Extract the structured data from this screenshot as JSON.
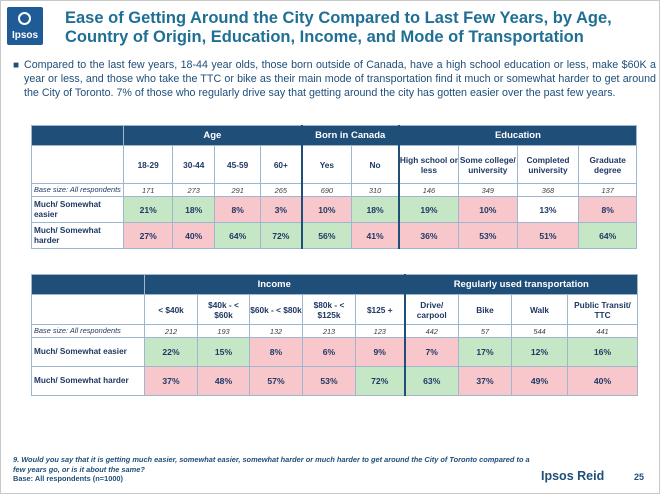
{
  "logo": {
    "text": "Ipsos"
  },
  "title": "Ease of Getting Around the City Compared to Last Few Years, by Age, Country of Origin, Education, Income, and Mode of Transportation",
  "bullet": "Compared to the last few years, 18-44 year olds, those born outside of Canada, have a high school education or less, make $60K a year or less, and those who take the TTC or bike as their main mode of transportation find it much or somewhat harder to get around the City of Toronto. 7% of those who regularly drive say that getting around the city has gotten easier over the past few years.",
  "table1": {
    "groups": [
      "Age",
      "Born in Canada",
      "Education"
    ],
    "columns": [
      "18-29",
      "30-44",
      "45-59",
      "60+",
      "Yes",
      "No",
      "High school or less",
      "Some college/ university",
      "Completed university",
      "Graduate degree"
    ],
    "base_label": "Base size: All respondents",
    "base": [
      "171",
      "273",
      "291",
      "265",
      "690",
      "310",
      "146",
      "349",
      "368",
      "137"
    ],
    "rows": [
      {
        "label": "Much/ Somewhat easier",
        "values": [
          "21%",
          "18%",
          "8%",
          "3%",
          "10%",
          "18%",
          "19%",
          "10%",
          "13%",
          "8%"
        ]
      },
      {
        "label": "Much/ Somewhat harder",
        "values": [
          "27%",
          "40%",
          "64%",
          "72%",
          "56%",
          "41%",
          "36%",
          "53%",
          "51%",
          "64%"
        ]
      }
    ]
  },
  "table2": {
    "groups": [
      "Income",
      "Regularly used transportation"
    ],
    "columns": [
      "< $40k",
      "$40k - < $60k",
      "$60k - < $80k",
      "$80k - < $125k",
      "$125 +",
      "Drive/ carpool",
      "Bike",
      "Walk",
      "Public Transit/ TTC"
    ],
    "base_label": "Base size: All respondents",
    "base": [
      "212",
      "193",
      "132",
      "213",
      "123",
      "442",
      "57",
      "544",
      "441"
    ],
    "rows": [
      {
        "label": "Much/ Somewhat easier",
        "values": [
          "22%",
          "15%",
          "8%",
          "6%",
          "9%",
          "7%",
          "17%",
          "12%",
          "16%"
        ]
      },
      {
        "label": "Much/ Somewhat harder",
        "values": [
          "37%",
          "48%",
          "57%",
          "53%",
          "72%",
          "63%",
          "37%",
          "49%",
          "40%"
        ]
      }
    ]
  },
  "colors": {
    "green": "#c6e7c6",
    "red": "#f7c7cc",
    "header": "#1f4e79",
    "title": "#1f6f95"
  },
  "footnote": {
    "question": "9. Would you say that it is getting much easier, somewhat easier, somewhat harder or much harder to get around the City of Toronto compared to a few years go, or is it about the same?",
    "base": "Base: All respondents (n=1000)"
  },
  "brand": "Ipsos Reid",
  "page_number": "25"
}
